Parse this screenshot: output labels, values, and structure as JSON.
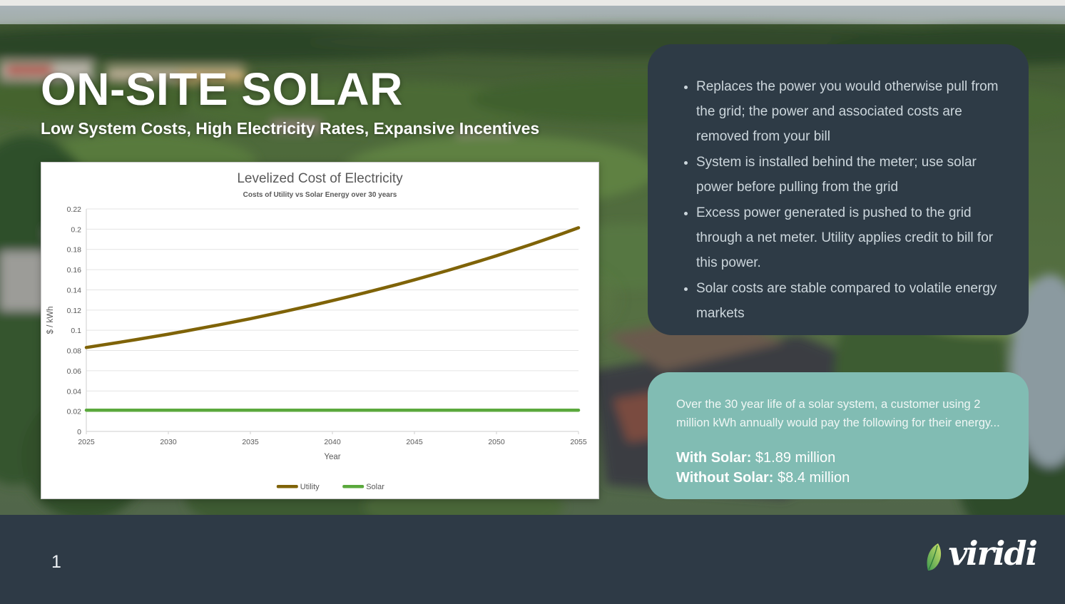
{
  "slide": {
    "title": "ON-SITE SOLAR",
    "subtitle": "Low System Costs, High Electricity Rates, Expansive Incentives",
    "page_number": "1",
    "logo_text": "viridi"
  },
  "right_panel": {
    "bullets": [
      "Replaces the power you would otherwise pull from the grid; the power and associated costs are removed from your bill",
      "System is installed behind the meter; use solar power before pulling from the grid",
      "Excess power generated is pushed to the grid through a net meter. Utility applies credit to bill for this power.",
      "Solar costs are stable compared to volatile energy markets"
    ]
  },
  "summary_box": {
    "intro": "Over the 30 year life of a solar system, a customer using 2 million kWh annually would pay the following for their energy...",
    "with_solar_label": "With Solar:",
    "with_solar_value": " $1.89 million",
    "without_solar_label": "Without Solar:",
    "without_solar_value": " $8.4 million"
  },
  "chart_data": {
    "type": "line",
    "title": "Levelized Cost of Electricity",
    "subtitle": "Costs of Utility vs Solar Energy over 30 years",
    "xlabel": "Year",
    "ylabel": "$ / kWh",
    "xlim": [
      2025,
      2055
    ],
    "ylim": [
      0,
      0.22
    ],
    "x_tick_step": 5,
    "y_tick_step": 0.02,
    "grid": true,
    "legend_position": "bottom",
    "x": [
      2025,
      2026,
      2027,
      2028,
      2029,
      2030,
      2031,
      2032,
      2033,
      2034,
      2035,
      2036,
      2037,
      2038,
      2039,
      2040,
      2041,
      2042,
      2043,
      2044,
      2045,
      2046,
      2047,
      2048,
      2049,
      2050,
      2051,
      2052,
      2053,
      2054,
      2055
    ],
    "series": [
      {
        "name": "Utility",
        "color": "#7f6308",
        "values": [
          0.083,
          0.0855,
          0.0881,
          0.0907,
          0.0934,
          0.0962,
          0.0991,
          0.1021,
          0.1051,
          0.1083,
          0.1115,
          0.1149,
          0.1183,
          0.1219,
          0.1255,
          0.1293,
          0.1332,
          0.1372,
          0.1413,
          0.1455,
          0.1499,
          0.1544,
          0.159,
          0.1638,
          0.1687,
          0.1737,
          0.179,
          0.1843,
          0.1898,
          0.1955,
          0.2014
        ]
      },
      {
        "name": "Solar",
        "color": "#5aa83c",
        "values": [
          0.021,
          0.021,
          0.021,
          0.021,
          0.021,
          0.021,
          0.021,
          0.021,
          0.021,
          0.021,
          0.021,
          0.021,
          0.021,
          0.021,
          0.021,
          0.021,
          0.021,
          0.021,
          0.021,
          0.021,
          0.021,
          0.021,
          0.021,
          0.021,
          0.021,
          0.021,
          0.021,
          0.021,
          0.021,
          0.021,
          0.021
        ]
      }
    ]
  },
  "colors": {
    "panel_dark": "#2e3b46",
    "accent_teal": "#81bcb3",
    "bottom_bar": "#2e3a46",
    "utility_line": "#7f6308",
    "solar_line": "#5aa83c"
  }
}
